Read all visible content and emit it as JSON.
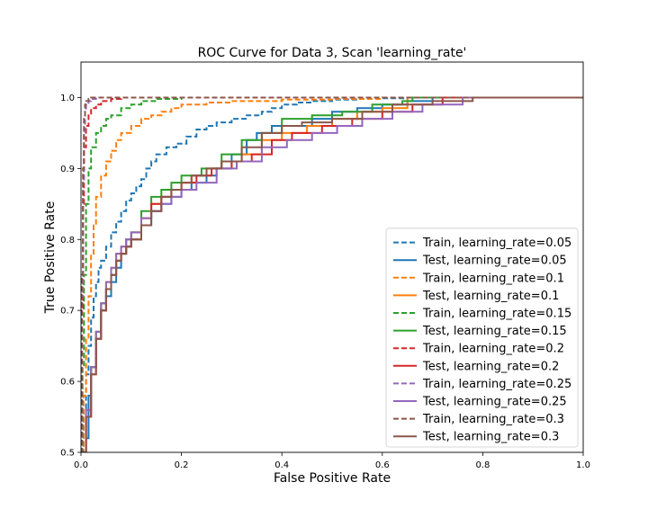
{
  "chart_data": {
    "type": "line",
    "title": "ROC Curve for Data 3, Scan 'learning_rate'",
    "xlabel": "False Positive Rate",
    "ylabel": "True Positive Rate",
    "xlim": [
      0.0,
      1.0
    ],
    "ylim": [
      0.5,
      1.05
    ],
    "xticks": [
      "0.0",
      "0.2",
      "0.4",
      "0.6",
      "0.8",
      "1.0"
    ],
    "yticks": [
      "0.5",
      "0.6",
      "0.7",
      "0.8",
      "0.9",
      "1.0"
    ],
    "legend_position": "lower right",
    "grid": false,
    "series": [
      {
        "name": "Train, learning_rate=0.05",
        "color": "#1f77b4",
        "style": "dashed",
        "x": [
          0.0,
          0.005,
          0.01,
          0.015,
          0.02,
          0.025,
          0.03,
          0.035,
          0.04,
          0.05,
          0.06,
          0.07,
          0.08,
          0.09,
          0.1,
          0.11,
          0.12,
          0.13,
          0.14,
          0.15,
          0.17,
          0.19,
          0.21,
          0.23,
          0.25,
          0.27,
          0.3,
          0.33,
          0.36,
          0.38,
          0.4,
          0.43,
          0.46,
          0.5,
          0.55,
          0.6,
          0.65,
          0.7,
          1.0
        ],
        "y": [
          0.5,
          0.56,
          0.61,
          0.65,
          0.69,
          0.72,
          0.74,
          0.76,
          0.77,
          0.79,
          0.81,
          0.825,
          0.84,
          0.855,
          0.865,
          0.875,
          0.885,
          0.9,
          0.91,
          0.92,
          0.93,
          0.935,
          0.945,
          0.955,
          0.96,
          0.965,
          0.97,
          0.975,
          0.98,
          0.985,
          0.99,
          0.993,
          0.995,
          0.997,
          0.998,
          0.999,
          1.0,
          1.0,
          1.0
        ]
      },
      {
        "name": "Test, learning_rate=0.05",
        "color": "#1f77b4",
        "style": "solid",
        "x": [
          0.0,
          0.01,
          0.015,
          0.02,
          0.03,
          0.04,
          0.05,
          0.06,
          0.07,
          0.08,
          0.09,
          0.1,
          0.12,
          0.14,
          0.16,
          0.18,
          0.2,
          0.22,
          0.25,
          0.27,
          0.3,
          0.33,
          0.35,
          0.38,
          0.42,
          0.46,
          0.5,
          0.55,
          0.6,
          0.65,
          0.7,
          1.0
        ],
        "y": [
          0.5,
          0.52,
          0.58,
          0.62,
          0.66,
          0.7,
          0.72,
          0.74,
          0.76,
          0.78,
          0.79,
          0.8,
          0.82,
          0.84,
          0.85,
          0.86,
          0.87,
          0.88,
          0.89,
          0.9,
          0.92,
          0.94,
          0.95,
          0.96,
          0.96,
          0.97,
          0.98,
          0.985,
          0.99,
          0.995,
          1.0,
          1.0
        ]
      },
      {
        "name": "Train, learning_rate=0.1",
        "color": "#ff7f0e",
        "style": "dashed",
        "x": [
          0.0,
          0.005,
          0.01,
          0.015,
          0.02,
          0.025,
          0.03,
          0.04,
          0.05,
          0.06,
          0.07,
          0.08,
          0.1,
          0.12,
          0.14,
          0.16,
          0.18,
          0.2,
          0.25,
          0.3,
          0.4,
          0.5,
          0.6,
          1.0
        ],
        "y": [
          0.5,
          0.58,
          0.66,
          0.72,
          0.78,
          0.82,
          0.86,
          0.89,
          0.91,
          0.925,
          0.94,
          0.95,
          0.96,
          0.97,
          0.975,
          0.98,
          0.985,
          0.99,
          0.993,
          0.995,
          0.997,
          0.998,
          1.0,
          1.0
        ]
      },
      {
        "name": "Test, learning_rate=0.1",
        "color": "#ff7f0e",
        "style": "solid",
        "x": [
          0.0,
          0.01,
          0.02,
          0.03,
          0.04,
          0.05,
          0.06,
          0.07,
          0.08,
          0.09,
          0.1,
          0.12,
          0.14,
          0.16,
          0.18,
          0.2,
          0.22,
          0.25,
          0.28,
          0.32,
          0.36,
          0.4,
          0.45,
          0.5,
          0.55,
          0.6,
          0.65,
          1.0
        ],
        "y": [
          0.5,
          0.55,
          0.62,
          0.67,
          0.71,
          0.74,
          0.76,
          0.78,
          0.79,
          0.8,
          0.81,
          0.83,
          0.85,
          0.86,
          0.87,
          0.88,
          0.89,
          0.9,
          0.91,
          0.92,
          0.94,
          0.95,
          0.96,
          0.97,
          0.98,
          0.985,
          1.0,
          1.0
        ]
      },
      {
        "name": "Train, learning_rate=0.15",
        "color": "#2ca02c",
        "style": "dashed",
        "x": [
          0.0,
          0.003,
          0.006,
          0.01,
          0.015,
          0.02,
          0.03,
          0.04,
          0.05,
          0.06,
          0.08,
          0.1,
          0.12,
          0.15,
          0.2,
          0.3,
          1.0
        ],
        "y": [
          0.5,
          0.62,
          0.75,
          0.85,
          0.9,
          0.93,
          0.95,
          0.96,
          0.97,
          0.975,
          0.985,
          0.99,
          0.995,
          0.998,
          1.0,
          1.0,
          1.0
        ]
      },
      {
        "name": "Test, learning_rate=0.15",
        "color": "#2ca02c",
        "style": "solid",
        "x": [
          0.0,
          0.01,
          0.02,
          0.03,
          0.04,
          0.05,
          0.06,
          0.07,
          0.08,
          0.09,
          0.1,
          0.12,
          0.14,
          0.16,
          0.18,
          0.2,
          0.24,
          0.28,
          0.32,
          0.36,
          0.4,
          0.46,
          0.52,
          0.58,
          0.64,
          0.66,
          1.0
        ],
        "y": [
          0.5,
          0.56,
          0.62,
          0.67,
          0.71,
          0.73,
          0.75,
          0.77,
          0.78,
          0.8,
          0.81,
          0.84,
          0.86,
          0.87,
          0.88,
          0.89,
          0.9,
          0.92,
          0.94,
          0.95,
          0.97,
          0.975,
          0.98,
          0.99,
          0.995,
          1.0,
          1.0
        ]
      },
      {
        "name": "Train, learning_rate=0.2",
        "color": "#d62728",
        "style": "dashed",
        "x": [
          0.0,
          0.002,
          0.004,
          0.006,
          0.01,
          0.015,
          0.02,
          0.03,
          0.04,
          0.06,
          0.08,
          0.1,
          1.0
        ],
        "y": [
          0.5,
          0.7,
          0.85,
          0.93,
          0.96,
          0.975,
          0.985,
          0.99,
          0.995,
          0.998,
          1.0,
          1.0,
          1.0
        ]
      },
      {
        "name": "Test, learning_rate=0.2",
        "color": "#d62728",
        "style": "solid",
        "x": [
          0.0,
          0.01,
          0.02,
          0.03,
          0.04,
          0.05,
          0.06,
          0.07,
          0.08,
          0.09,
          0.1,
          0.12,
          0.14,
          0.16,
          0.18,
          0.2,
          0.23,
          0.26,
          0.3,
          0.34,
          0.38,
          0.42,
          0.48,
          0.54,
          0.6,
          0.66,
          0.72,
          1.0
        ],
        "y": [
          0.5,
          0.55,
          0.61,
          0.66,
          0.7,
          0.73,
          0.75,
          0.77,
          0.78,
          0.79,
          0.8,
          0.83,
          0.85,
          0.86,
          0.87,
          0.88,
          0.89,
          0.9,
          0.91,
          0.92,
          0.94,
          0.95,
          0.96,
          0.97,
          0.98,
          0.99,
          1.0,
          1.0
        ]
      },
      {
        "name": "Train, learning_rate=0.25",
        "color": "#9467bd",
        "style": "dashed",
        "x": [
          0.0,
          0.002,
          0.004,
          0.006,
          0.008,
          0.01,
          0.015,
          0.02,
          0.03,
          0.05,
          1.0
        ],
        "y": [
          0.5,
          0.72,
          0.88,
          0.95,
          0.98,
          0.99,
          0.995,
          0.998,
          1.0,
          1.0,
          1.0
        ]
      },
      {
        "name": "Test, learning_rate=0.25",
        "color": "#9467bd",
        "style": "solid",
        "x": [
          0.0,
          0.01,
          0.02,
          0.03,
          0.04,
          0.05,
          0.06,
          0.07,
          0.08,
          0.09,
          0.1,
          0.12,
          0.14,
          0.16,
          0.18,
          0.2,
          0.23,
          0.27,
          0.31,
          0.36,
          0.41,
          0.46,
          0.51,
          0.56,
          0.62,
          0.68,
          0.76,
          1.0
        ],
        "y": [
          0.5,
          0.56,
          0.62,
          0.67,
          0.71,
          0.74,
          0.76,
          0.78,
          0.79,
          0.8,
          0.81,
          0.83,
          0.84,
          0.85,
          0.86,
          0.87,
          0.88,
          0.9,
          0.91,
          0.93,
          0.94,
          0.95,
          0.96,
          0.97,
          0.98,
          0.99,
          1.0,
          1.0
        ]
      },
      {
        "name": "Train, learning_rate=0.3",
        "color": "#8c564b",
        "style": "dashed",
        "x": [
          0.0,
          0.002,
          0.004,
          0.006,
          0.008,
          0.01,
          0.015,
          0.02,
          1.0
        ],
        "y": [
          0.5,
          0.75,
          0.9,
          0.97,
          0.99,
          0.995,
          0.998,
          1.0,
          1.0
        ]
      },
      {
        "name": "Test, learning_rate=0.3",
        "color": "#8c564b",
        "style": "solid",
        "x": [
          0.0,
          0.01,
          0.02,
          0.03,
          0.04,
          0.05,
          0.06,
          0.07,
          0.08,
          0.09,
          0.1,
          0.12,
          0.14,
          0.16,
          0.18,
          0.2,
          0.22,
          0.25,
          0.28,
          0.32,
          0.36,
          0.4,
          0.44,
          0.5,
          0.56,
          0.62,
          0.7,
          0.78,
          1.0
        ],
        "y": [
          0.5,
          0.55,
          0.61,
          0.66,
          0.7,
          0.73,
          0.75,
          0.77,
          0.78,
          0.79,
          0.8,
          0.82,
          0.84,
          0.86,
          0.87,
          0.88,
          0.89,
          0.9,
          0.91,
          0.93,
          0.95,
          0.96,
          0.965,
          0.97,
          0.98,
          0.99,
          0.995,
          1.0,
          1.0
        ]
      }
    ]
  }
}
